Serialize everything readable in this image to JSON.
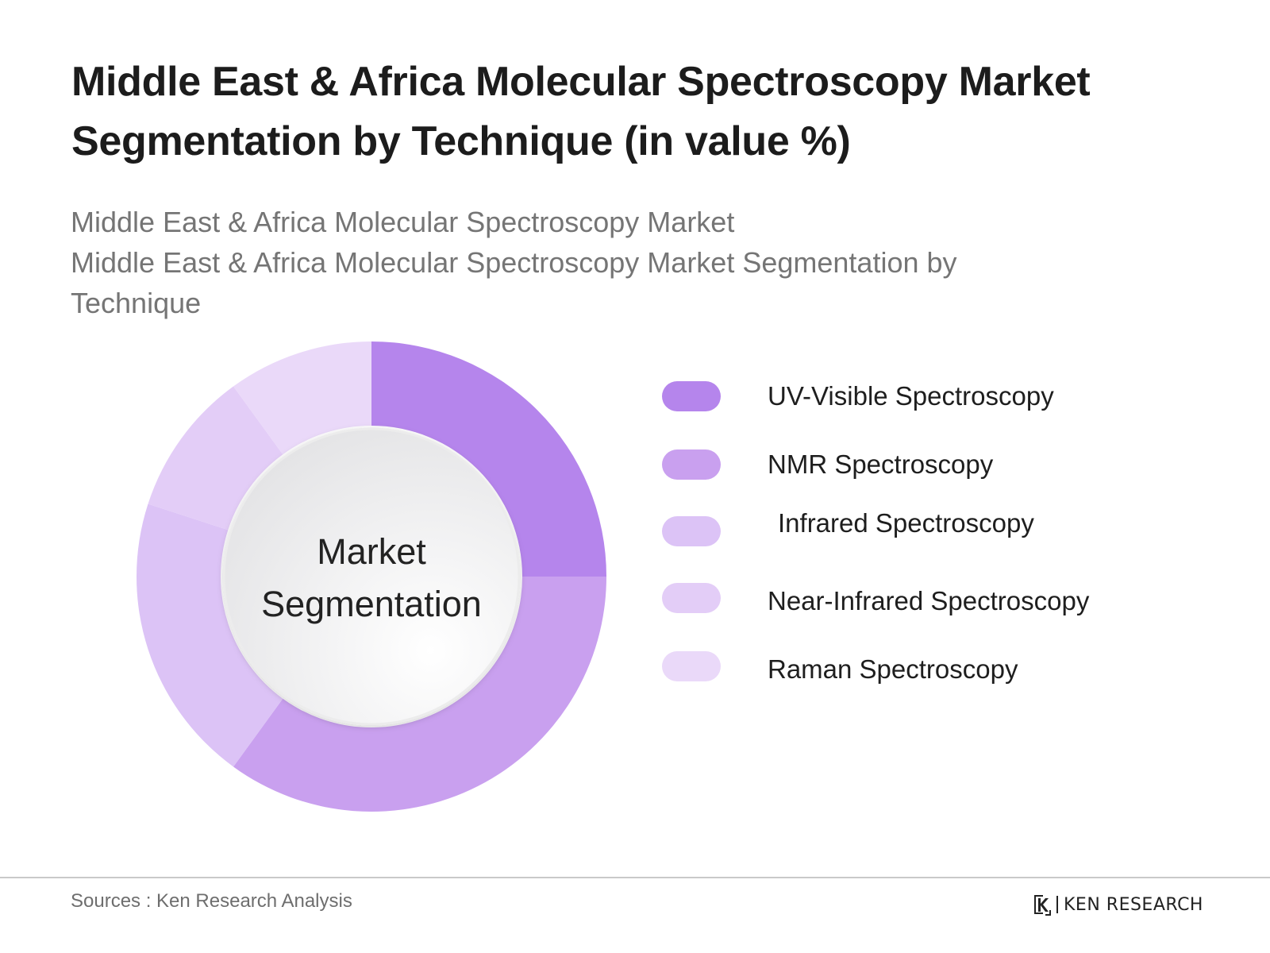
{
  "header": {
    "title": "Middle East & Africa Molecular Spectroscopy Market Segmentation by Technique (in value %)",
    "subtitle_lines": [
      "Middle East & Africa Molecular Spectroscopy Market",
      "Middle East & Africa Molecular Spectroscopy Market Segmentation by",
      "Technique"
    ]
  },
  "chart_data": {
    "type": "pie",
    "donut": true,
    "center_label_lines": [
      "Market",
      "Segmentation"
    ],
    "legend_position": "right",
    "categories": [
      "UV-Visible Spectroscopy",
      "NMR Spectroscopy",
      "Infrared Spectroscopy",
      "Near-Infrared Spectroscopy",
      "Raman Spectroscopy"
    ],
    "values": [
      25,
      35,
      20,
      10,
      10
    ],
    "colors": [
      "#b585ec",
      "#c9a0ef",
      "#dcc3f6",
      "#e3cdf7",
      "#ead9f9"
    ]
  },
  "footer": {
    "source": "Sources : Ken Research Analysis",
    "brand": "KEN RESEARCH",
    "brand_icon": "ken-research-logo-icon"
  }
}
